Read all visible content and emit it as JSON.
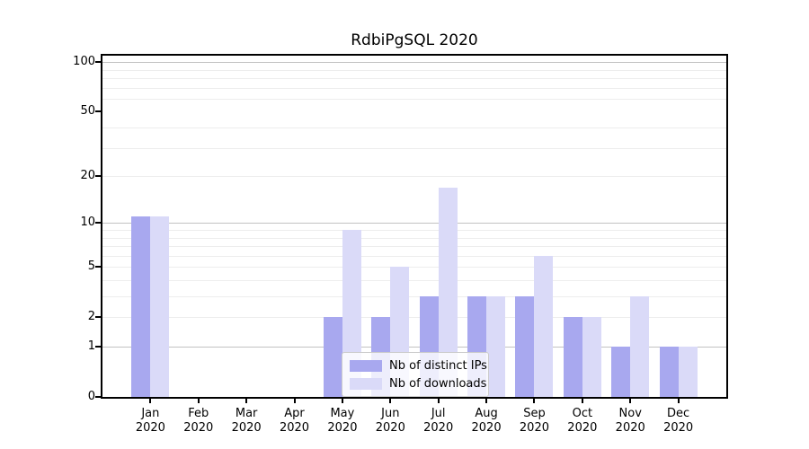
{
  "chart_data": {
    "type": "bar",
    "title": "RdbiPgSQL 2020",
    "categories": [
      "Jan",
      "Feb",
      "Mar",
      "Apr",
      "May",
      "Jun",
      "Jul",
      "Aug",
      "Sep",
      "Oct",
      "Nov",
      "Dec"
    ],
    "xtick_year": "2020",
    "series": [
      {
        "name": "Nb of distinct IPs",
        "color": "#a8a8ef",
        "values": [
          11,
          0,
          0,
          0,
          2,
          2,
          3,
          3,
          3,
          2,
          1,
          1
        ]
      },
      {
        "name": "Nb of downloads",
        "color": "#dadaf8",
        "values": [
          11,
          0,
          0,
          0,
          9,
          5,
          17,
          3,
          6,
          2,
          3,
          1
        ]
      }
    ],
    "yscale": "log1p",
    "yticks": [
      0,
      1,
      2,
      5,
      10,
      20,
      50,
      100
    ],
    "ylim": [
      0,
      110
    ],
    "grid": "horizontal",
    "major_gridlines": [
      1,
      10,
      100
    ],
    "minor_gridlines": [
      2,
      3,
      4,
      5,
      6,
      7,
      8,
      9,
      20,
      30,
      40,
      60,
      70,
      80,
      90
    ],
    "legend_position": "lower-center-inside"
  }
}
